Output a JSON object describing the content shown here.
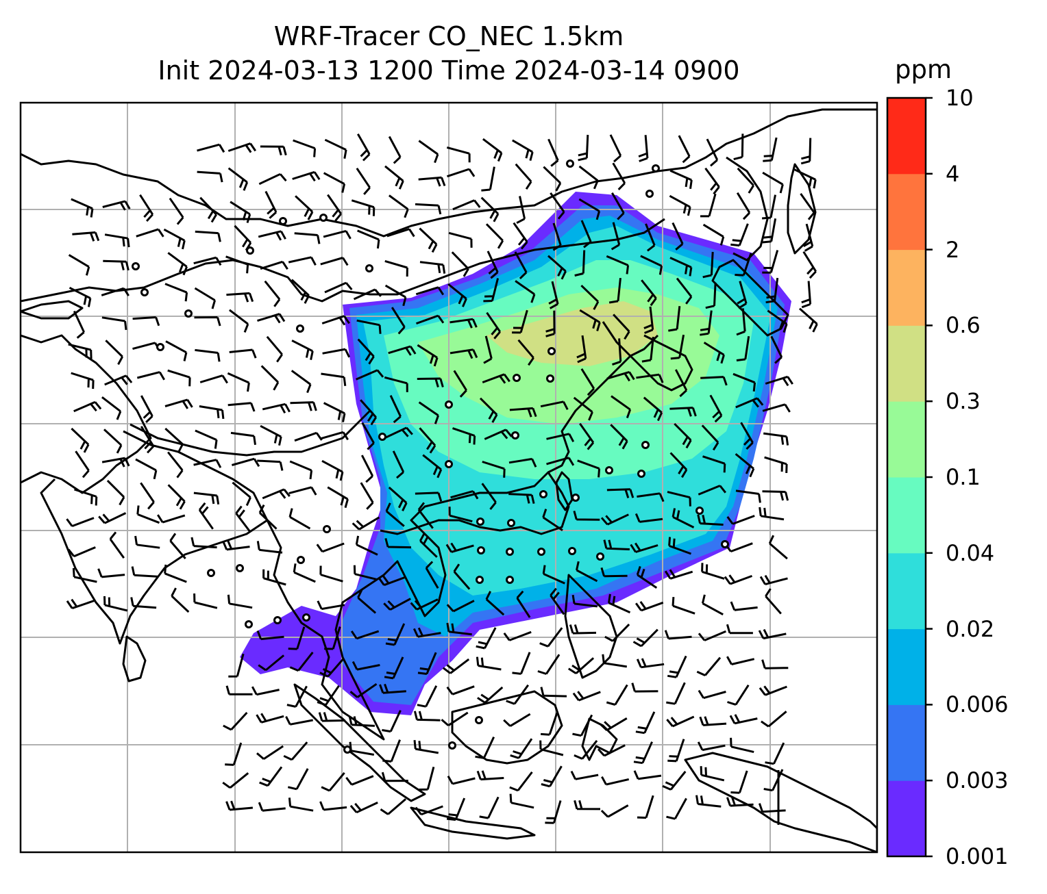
{
  "title_line1": "WRF-Tracer CO_NEC 1.5km",
  "title_line2": "Init 2024-03-13 1200 Time 2024-03-14 0900",
  "colorbar": {
    "unit": "ppm",
    "levels": [
      "0.001",
      "0.003",
      "0.006",
      "0.02",
      "0.04",
      "0.1",
      "0.3",
      "0.6",
      "2",
      "4",
      "10"
    ],
    "colors": [
      "#6a2bff",
      "#3575f3",
      "#00b1e8",
      "#2fdedb",
      "#67fbc0",
      "#98fa97",
      "#d0e084",
      "#fdb35f",
      "#ff743d",
      "#ff2a18"
    ]
  },
  "map": {
    "field": "CO tracer concentration",
    "overlays": [
      "wind-barbs",
      "calm-wind-circles",
      "coastlines",
      "country-borders",
      "lat-lon-gridlines"
    ]
  }
}
